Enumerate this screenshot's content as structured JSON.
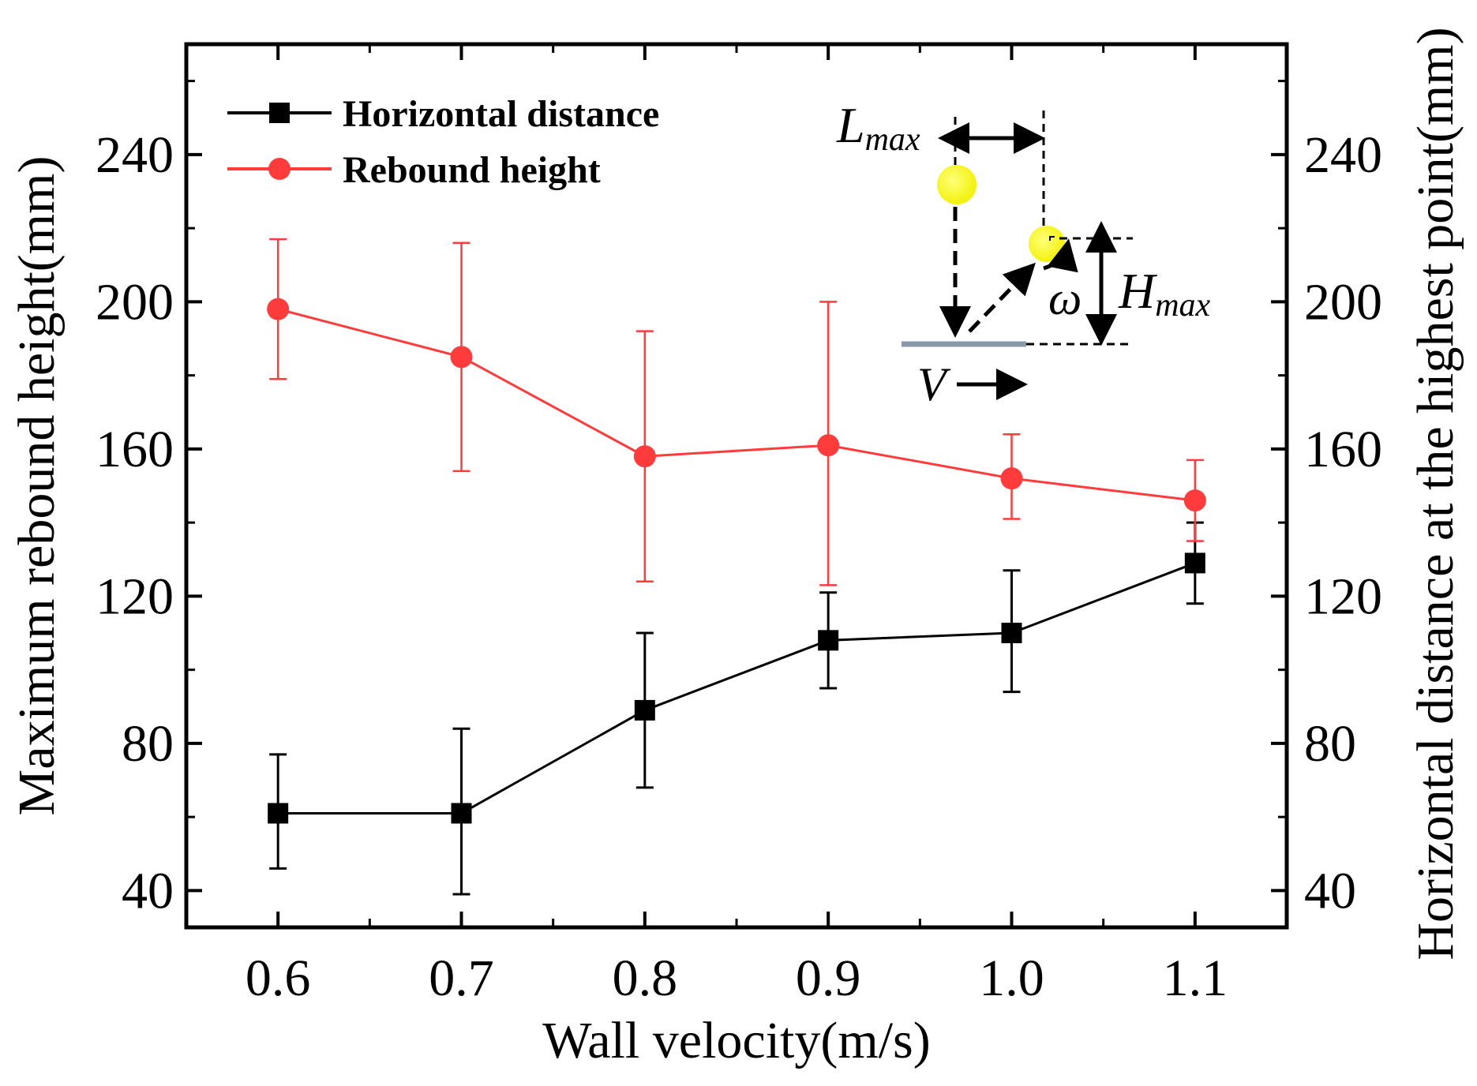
{
  "chart_data": {
    "type": "line",
    "title": "",
    "xlabel": "Wall velocity(m/s)",
    "ylabel": "Maximum rebound height(mm)",
    "ylabel_right": "Horizontal distance at the highest point(mm)",
    "x": [
      0.6,
      0.7,
      0.8,
      0.9,
      1.0,
      1.1
    ],
    "x_tick_labels": [
      "0.6",
      "0.7",
      "0.8",
      "0.9",
      "1.0",
      "1.1"
    ],
    "xlim": [
      0.55,
      1.15
    ],
    "ylim": [
      30,
      270
    ],
    "y_ticks": [
      40,
      80,
      120,
      160,
      200,
      240
    ],
    "y_tick_labels": [
      "40",
      "80",
      "120",
      "160",
      "200",
      "240"
    ],
    "legend_position": "top-left",
    "grid": false,
    "series": [
      {
        "name": "Horizontal distance",
        "color": "#000000",
        "marker": "square",
        "values": [
          61,
          61,
          89,
          108,
          110,
          129
        ],
        "err_low": [
          46,
          39,
          68,
          95,
          94,
          118
        ],
        "err_high": [
          77,
          84,
          110,
          121,
          127,
          140
        ]
      },
      {
        "name": "Rebound height",
        "color": "#ff3b3b",
        "marker": "circle",
        "values": [
          198,
          185,
          158,
          161,
          152,
          146
        ],
        "err_low": [
          179,
          154,
          124,
          123,
          141,
          135
        ],
        "err_high": [
          217,
          216,
          192,
          200,
          164,
          157
        ]
      }
    ],
    "inset": {
      "l_max": "L",
      "l_max_sub": "max",
      "h_max": "H",
      "h_max_sub": "max",
      "omega": "ω",
      "velocity": "V",
      "ball_color": "#f2f20a",
      "wall_color": "#8899aa"
    }
  }
}
